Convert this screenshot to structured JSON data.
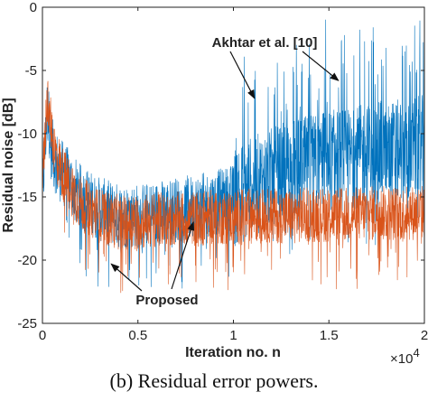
{
  "chart_data": {
    "type": "line",
    "xlabel": "Iteration no. n",
    "ylabel": "Residual noise  [dB]",
    "xlim": [
      0,
      20000
    ],
    "ylim": [
      -25,
      0
    ],
    "x_ticks": [
      0,
      5000,
      10000,
      15000,
      20000
    ],
    "x_tick_labels": [
      "0",
      "0.5",
      "1",
      "1.5",
      "2"
    ],
    "x_multiplier_label": "×10",
    "x_multiplier_exponent": "4",
    "y_ticks": [
      0,
      -5,
      -10,
      -15,
      -20,
      -25
    ],
    "y_tick_labels": [
      "0",
      "-5",
      "-10",
      "-15",
      "-20",
      "-25"
    ],
    "grid": false,
    "series": [
      {
        "color": "#0072BD",
        "x": [
          0,
          250,
          600,
          1000,
          2000,
          3000,
          4000,
          5000,
          6000,
          7000,
          8000,
          9000,
          10000,
          11000,
          12000,
          13000,
          14000,
          15000,
          16000,
          17000,
          18000,
          19000,
          20000
        ],
        "y": [
          -15,
          -8,
          -12,
          -13,
          -15,
          -16,
          -16.5,
          -16.5,
          -16.3,
          -16,
          -15.8,
          -15.5,
          -15,
          -14.2,
          -13.6,
          -13,
          -12.6,
          -12.2,
          -12,
          -11.7,
          -11.5,
          -11.3,
          -11
        ]
      },
      {
        "color": "#D95319",
        "x": [
          0,
          250,
          600,
          1000,
          2000,
          3000,
          4000,
          5000,
          6000,
          7000,
          8000,
          9000,
          10000,
          11000,
          12000,
          13000,
          14000,
          15000,
          16000,
          17000,
          18000,
          19000,
          20000
        ],
        "y": [
          -14,
          -7,
          -11,
          -13,
          -15.5,
          -16.5,
          -17,
          -17,
          -16.8,
          -16.8,
          -16.7,
          -16.6,
          -16.6,
          -16.5,
          -16.5,
          -16.5,
          -16.4,
          -16.4,
          -16.4,
          -16.3,
          -16.3,
          -16.3,
          -16.2
        ]
      }
    ],
    "annotations": [
      {
        "text": "Akhtar et al. [10]",
        "targets": [
          [
            11100,
            -7.2
          ],
          [
            15500,
            -5.8
          ]
        ]
      },
      {
        "text": "Proposed",
        "targets": [
          [
            3600,
            -20.3
          ],
          [
            7900,
            -17
          ]
        ]
      }
    ]
  },
  "caption": "(b) Residual error powers."
}
